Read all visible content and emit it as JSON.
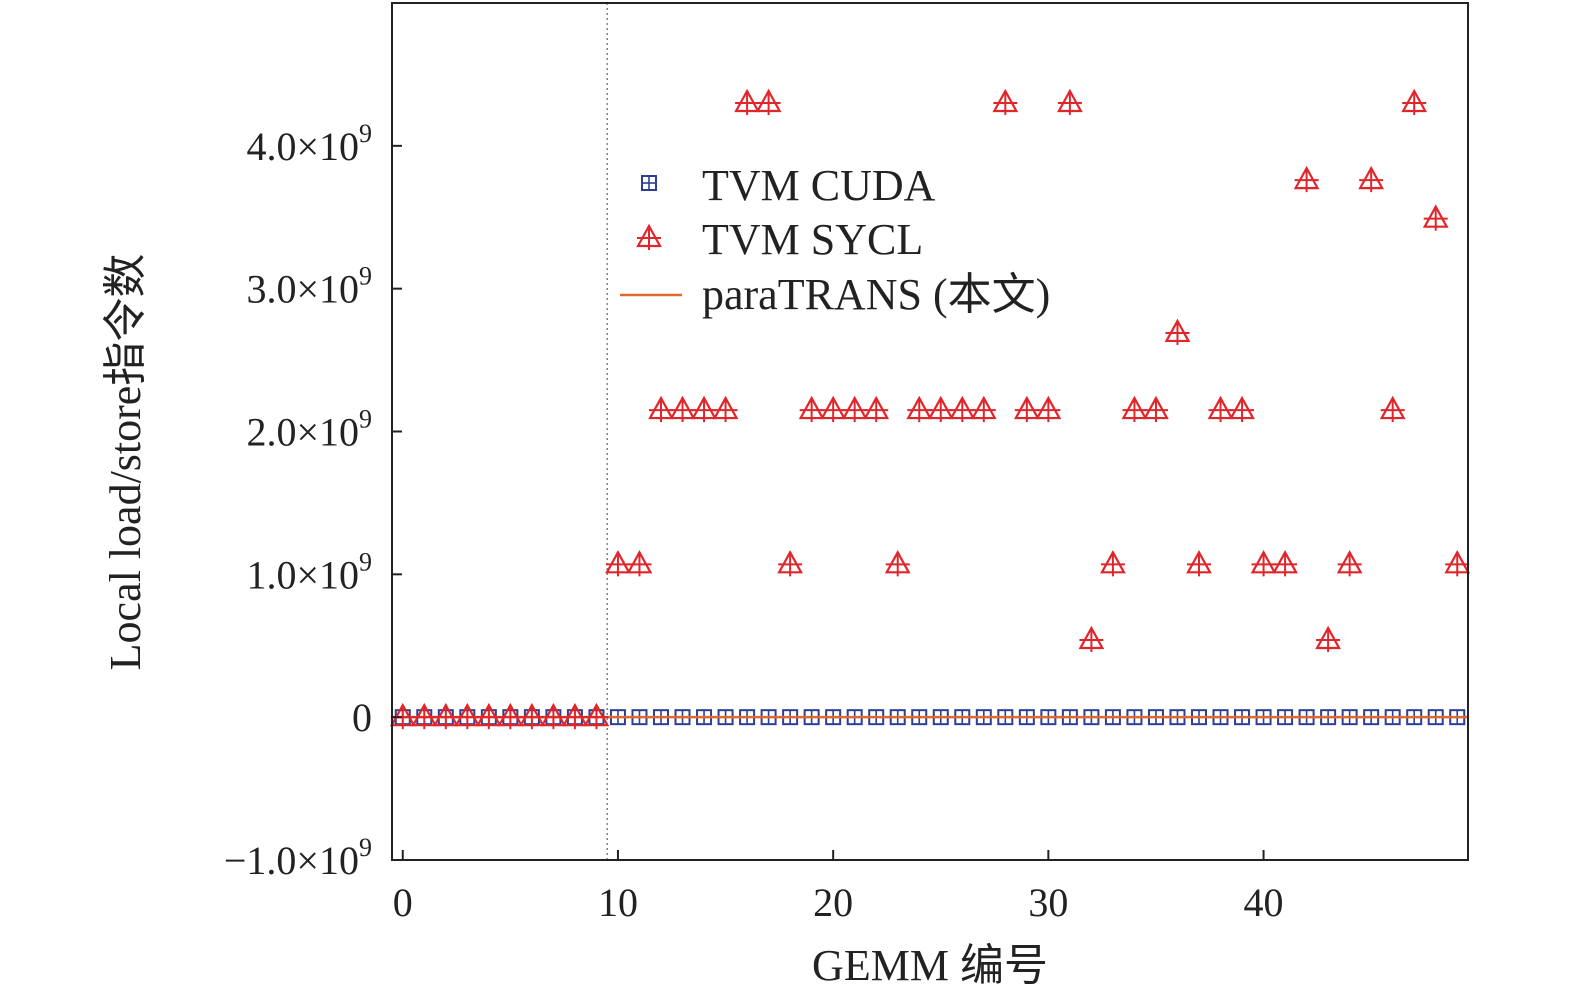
{
  "chart_data": {
    "type": "scatter",
    "title": "",
    "xlabel": "GEMM 编号",
    "ylabel": "Local load/store指令数",
    "xlim": [
      -0.5,
      49.5
    ],
    "ylim": [
      -1000000000,
      5000000000
    ],
    "x_ticks": [
      0,
      10,
      20,
      30,
      40
    ],
    "x_tick_labels": [
      "0",
      "10",
      "20",
      "30",
      "40"
    ],
    "y_ticks": [
      -1000000000,
      0,
      1000000000,
      2000000000,
      3000000000,
      4000000000
    ],
    "y_tick_labels": [
      {
        "mantissa": "−1.0×10",
        "exp": "9"
      },
      {
        "mantissa": "0",
        "exp": ""
      },
      {
        "mantissa": "1.0×10",
        "exp": "9"
      },
      {
        "mantissa": "2.0×10",
        "exp": "9"
      },
      {
        "mantissa": "3.0×10",
        "exp": "9"
      },
      {
        "mantissa": "4.0×10",
        "exp": "9"
      }
    ],
    "vline_x": 9.5,
    "legend_position": "center",
    "x": [
      0,
      1,
      2,
      3,
      4,
      5,
      6,
      7,
      8,
      9,
      10,
      11,
      12,
      13,
      14,
      15,
      16,
      17,
      18,
      19,
      20,
      21,
      22,
      23,
      24,
      25,
      26,
      27,
      28,
      29,
      30,
      31,
      32,
      33,
      34,
      35,
      36,
      37,
      38,
      39,
      40,
      41,
      42,
      43,
      44,
      45,
      46,
      47,
      48,
      49
    ],
    "series": [
      {
        "name": "TVM CUDA",
        "marker": "square-plus",
        "color": "#2b3f96",
        "values": [
          0,
          0,
          0,
          0,
          0,
          0,
          0,
          0,
          0,
          0,
          0,
          0,
          0,
          0,
          0,
          0,
          0,
          0,
          0,
          0,
          0,
          0,
          0,
          0,
          0,
          0,
          0,
          0,
          0,
          0,
          0,
          0,
          0,
          0,
          0,
          0,
          0,
          0,
          0,
          0,
          0,
          0,
          0,
          0,
          0,
          0,
          0,
          0,
          0,
          0
        ]
      },
      {
        "name": "TVM SYCL",
        "marker": "triangle-plus",
        "color": "#e0262b",
        "values": [
          0,
          0,
          0,
          0,
          0,
          0,
          0,
          0,
          0,
          0,
          1070000000,
          1070000000,
          2150000000,
          2150000000,
          2150000000,
          2150000000,
          4300000000,
          4300000000,
          1070000000,
          2150000000,
          2150000000,
          2150000000,
          2150000000,
          1070000000,
          2150000000,
          2150000000,
          2150000000,
          2150000000,
          4300000000,
          2150000000,
          2150000000,
          4300000000,
          540000000,
          1070000000,
          2150000000,
          2150000000,
          2690000000,
          1070000000,
          2150000000,
          2150000000,
          1070000000,
          1070000000,
          3760000000,
          540000000,
          1070000000,
          3760000000,
          2150000000,
          4300000000,
          3490000000,
          1070000000
        ]
      },
      {
        "name": "paraTRANS (本文)",
        "marker": "line",
        "color": "#e06a2b",
        "values": [
          0,
          0,
          0,
          0,
          0,
          0,
          0,
          0,
          0,
          0,
          0,
          0,
          0,
          0,
          0,
          0,
          0,
          0,
          0,
          0,
          0,
          0,
          0,
          0,
          0,
          0,
          0,
          0,
          0,
          0,
          0,
          0,
          0,
          0,
          0,
          0,
          0,
          0,
          0,
          0,
          0,
          0,
          0,
          0,
          0,
          0,
          0,
          0,
          0,
          0
        ]
      }
    ]
  }
}
